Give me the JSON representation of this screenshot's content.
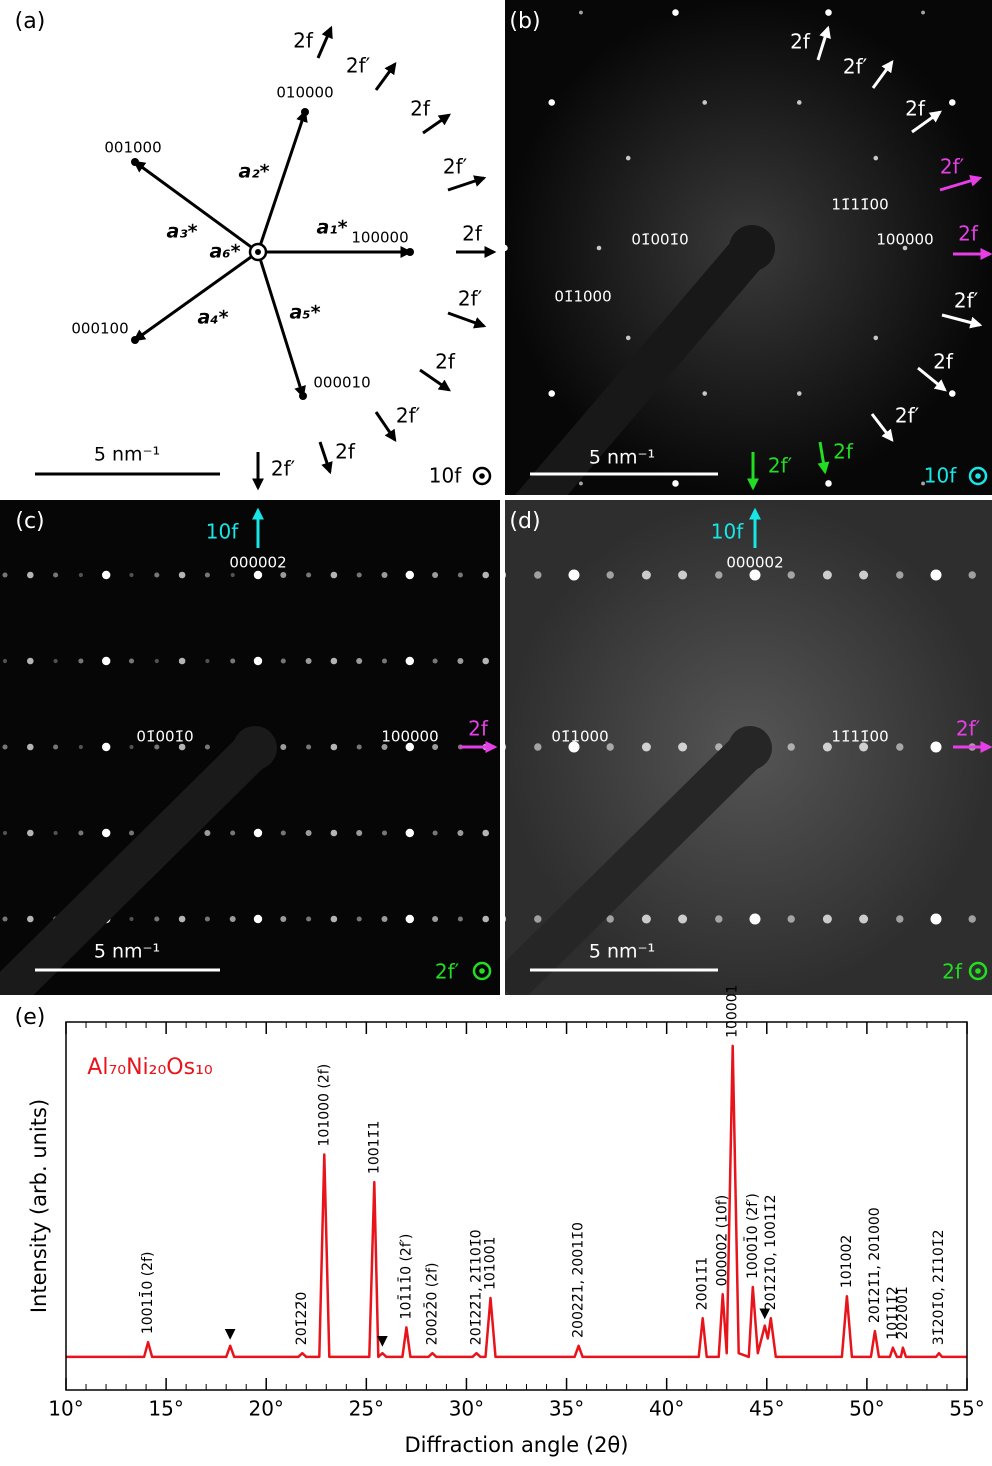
{
  "panels": {
    "a": {
      "label": "(a)",
      "indices": [
        "010000",
        "001000",
        "100000",
        "000100",
        "000010"
      ],
      "vectors": [
        "a₁*",
        "a₂*",
        "a₃*",
        "a₆*",
        "a₄*",
        "a₅*"
      ],
      "arrows": [
        "2f",
        "2f′",
        "2f",
        "2f′",
        "2f",
        "2f′",
        "2f",
        "2f′",
        "2f",
        "2f′"
      ],
      "scale_bar": "5 nm⁻¹",
      "zone": "10f"
    },
    "b": {
      "label": "(b)",
      "indices": [
        "11̄11̄00",
        "01̄001̄0",
        "100000",
        "01̄1000"
      ],
      "arrows": [
        "2f",
        "2f′",
        "2f",
        "2f′",
        "2f",
        "2f′",
        "2f",
        "2f′",
        "2f",
        "2f′"
      ],
      "scale_bar": "5 nm⁻¹",
      "zone": "10f"
    },
    "c": {
      "label": "(c)",
      "indices": [
        "000002",
        "01̄001̄0",
        "100000"
      ],
      "arrows": [
        "10f",
        "2f"
      ],
      "scale_bar": "5 nm⁻¹",
      "zone": "2f′"
    },
    "d": {
      "label": "(d)",
      "indices": [
        "000002",
        "01̄1000",
        "11̄11̄00"
      ],
      "arrows": [
        "10f",
        "2f′"
      ],
      "scale_bar": "5 nm⁻¹",
      "zone": "2f"
    }
  },
  "chart_data": {
    "type": "line",
    "panel_label": "(e)",
    "title": "Al₇₀Ni₂₀Os₁₀",
    "x_label": "Diffraction angle (2θ)",
    "y_label": "Intensity (arb. units)",
    "color": "#e8141b",
    "xlim": [
      10,
      55
    ],
    "ylim": [
      0,
      100
    ],
    "xticks": [
      {
        "value": 10,
        "label": "10°"
      },
      {
        "value": 15,
        "label": "15°"
      },
      {
        "value": 20,
        "label": "20°"
      },
      {
        "value": 25,
        "label": "25°"
      },
      {
        "value": 30,
        "label": "30°"
      },
      {
        "value": 35,
        "label": "35°"
      },
      {
        "value": 40,
        "label": "40°"
      },
      {
        "value": 45,
        "label": "45°"
      },
      {
        "value": 50,
        "label": "50°"
      },
      {
        "value": 55,
        "label": "55°"
      }
    ],
    "x": [
      10,
      13.9,
      14.1,
      14.3,
      18.0,
      18.2,
      18.4,
      21.6,
      21.8,
      22.0,
      22.65,
      22.9,
      23.15,
      25.15,
      25.4,
      25.6,
      25.8,
      26.0,
      26.8,
      27.0,
      27.2,
      28.1,
      28.3,
      28.5,
      30.3,
      30.5,
      30.7,
      30.95,
      31.2,
      31.45,
      35.4,
      35.6,
      35.8,
      41.6,
      41.8,
      42.0,
      42.6,
      42.8,
      43.0,
      43.3,
      43.6,
      44.1,
      44.3,
      44.55,
      44.9,
      45.05,
      45.2,
      45.45,
      48.75,
      49.0,
      49.25,
      50.2,
      50.4,
      50.6,
      51.15,
      51.3,
      51.5,
      51.7,
      51.8,
      51.95,
      53.45,
      53.6,
      53.75,
      55
    ],
    "values": [
      9,
      9,
      13,
      9,
      9,
      12,
      9,
      9,
      10,
      9,
      9,
      64,
      9,
      9,
      56.5,
      9,
      10,
      9,
      9,
      17,
      9,
      9,
      10,
      9,
      9,
      10,
      9,
      9,
      25,
      9,
      9,
      12,
      9,
      9,
      19.5,
      9,
      9,
      26,
      10,
      93.5,
      10,
      9,
      28,
      10,
      17.5,
      14,
      19.5,
      9,
      9,
      25.5,
      9,
      9,
      16,
      9,
      9,
      11.5,
      9,
      9,
      11.5,
      9,
      9,
      10,
      9,
      9
    ],
    "annotations": [
      {
        "x": 14.1,
        "label": "10011̄0 (2f)"
      },
      {
        "x": 21.8,
        "label": "201̄22̄0"
      },
      {
        "x": 22.9,
        "label": "101000 (2f)"
      },
      {
        "x": 25.4,
        "label": "10011̄1"
      },
      {
        "x": 27.0,
        "label": "101̄11̄0 (2f′)"
      },
      {
        "x": 28.3,
        "label": "20022̄0 (2f)"
      },
      {
        "x": 30.5,
        "label": "201̄22̄1, 21̄101̄0"
      },
      {
        "x": 31.2,
        "label": "101001"
      },
      {
        "x": 35.6,
        "label": "20022̄1, 20011̄0"
      },
      {
        "x": 41.8,
        "label": "20011̄1"
      },
      {
        "x": 42.8,
        "label": "000002 (10f)"
      },
      {
        "x": 43.3,
        "label": "100001"
      },
      {
        "x": 44.3,
        "label": "10001̄0 (2f′)"
      },
      {
        "x": 45.2,
        "label": "201̄21̄0, 10011̄2"
      },
      {
        "x": 49.0,
        "label": "101002"
      },
      {
        "x": 50.4,
        "label": "201̄21̄1, 201000"
      },
      {
        "x": 51.3,
        "label": "101̄11̄2"
      },
      {
        "x": 51.8,
        "label": "202001"
      },
      {
        "x": 53.6,
        "label": "31̄201̄0, 21̄101̄2"
      }
    ],
    "markers": [
      {
        "x": 18.2,
        "label": "▼"
      },
      {
        "x": 25.8,
        "label": "▼"
      },
      {
        "x": 44.9,
        "label": "▼"
      }
    ]
  }
}
